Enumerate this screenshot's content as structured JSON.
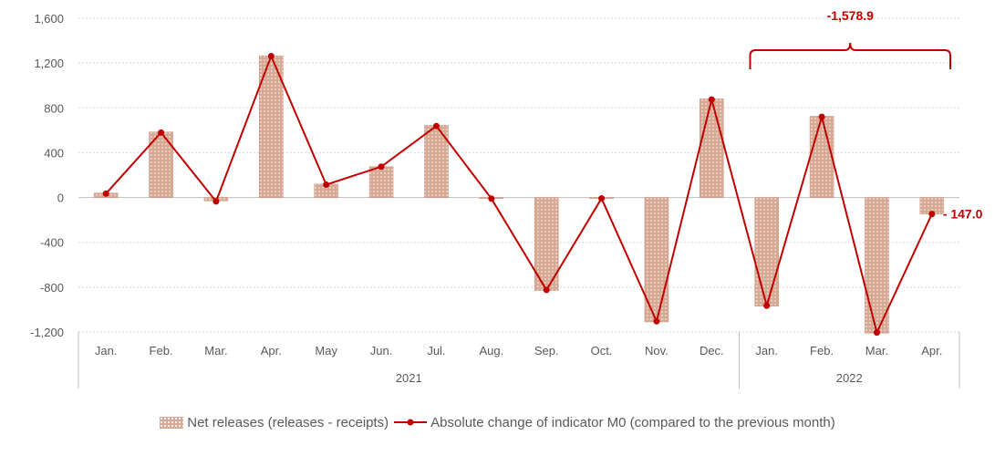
{
  "chart_data": {
    "type": "bar+line",
    "ylim": [
      -1200,
      1600
    ],
    "yticks": [
      -1200,
      -800,
      -400,
      0,
      400,
      800,
      1200,
      1600
    ],
    "ytick_labels": [
      "-1,200",
      "-800",
      "-400",
      "0",
      "400",
      "800",
      "1,200",
      "1,600"
    ],
    "categories": [
      "Jan.",
      "Feb.",
      "Mar.",
      "Apr.",
      "May",
      "Jun.",
      "Jul.",
      "Aug.",
      "Sep.",
      "Oct.",
      "Nov.",
      "Dec.",
      "Jan.",
      "Feb.",
      "Mar.",
      "Apr."
    ],
    "year_groups": [
      {
        "label": "2021",
        "start": 0,
        "end": 11
      },
      {
        "label": "2022",
        "start": 12,
        "end": 15
      }
    ],
    "series": [
      {
        "name": "Net releases (releases - receipts)",
        "kind": "bar",
        "color": "#d6a994",
        "values": [
          40,
          585,
          -30,
          1265,
          120,
          275,
          645,
          -10,
          -830,
          -10,
          -1110,
          880,
          -970,
          725,
          -1210,
          -147
        ]
      },
      {
        "name": "Absolute change of indicator M0 (compared to the previous month)",
        "kind": "line",
        "color": "#c00000",
        "values": [
          35,
          580,
          -35,
          1262,
          115,
          275,
          638,
          -10,
          -825,
          -8,
          -1105,
          875,
          -965,
          720,
          -1205,
          -147
        ]
      }
    ],
    "annotations": {
      "bracket_label": "-1,578.9",
      "last_value_label": "- 147.0"
    }
  }
}
